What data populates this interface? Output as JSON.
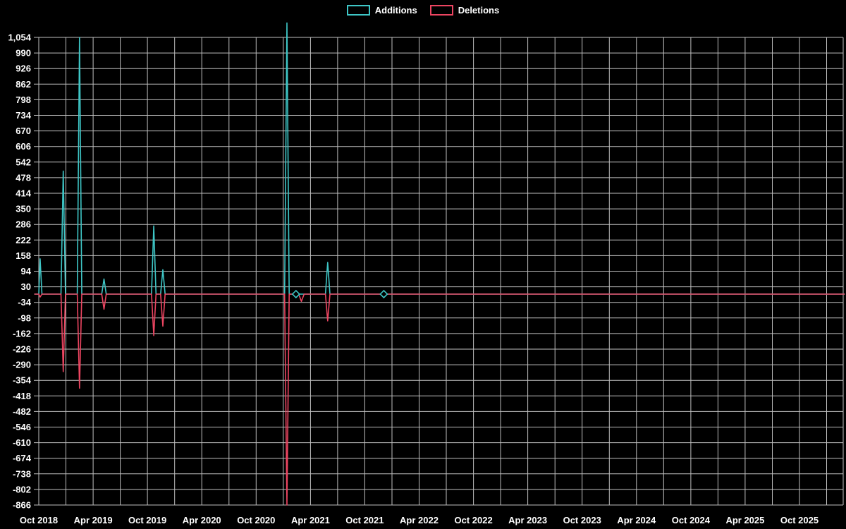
{
  "chart_data": {
    "type": "line",
    "title": "",
    "background": "#000000",
    "grid_color": "#bfbfbf",
    "text_color": "#ffffff",
    "legend": [
      {
        "label": "Additions",
        "color": "#3ec6c6"
      },
      {
        "label": "Deletions",
        "color": "#ec4561"
      }
    ],
    "x_axis": {
      "tick_labels": [
        "Oct 2018",
        "Apr 2019",
        "Oct 2019",
        "Apr 2020",
        "Oct 2020",
        "Apr 2021",
        "Oct 2021",
        "Apr 2022",
        "Oct 2022",
        "Apr 2023",
        "Oct 2023",
        "Apr 2024",
        "Oct 2024",
        "Apr 2025",
        "Oct 2025"
      ],
      "tick_month_index": [
        0,
        6,
        12,
        18,
        24,
        30,
        36,
        42,
        48,
        54,
        60,
        66,
        72,
        78,
        84
      ],
      "gridline_start_month": 0,
      "gridline_every_months": 3,
      "months_range": [
        -0.5,
        89
      ]
    },
    "y_axis": {
      "min": -866,
      "max": 1054,
      "tick_step": 64,
      "tick_labels": [
        "1,054",
        "990",
        "926",
        "862",
        "798",
        "734",
        "670",
        "606",
        "542",
        "478",
        "414",
        "350",
        "286",
        "222",
        "158",
        "94",
        "30",
        "-34",
        "-98",
        "-162",
        "-226",
        "-290",
        "-354",
        "-418",
        "-482",
        "-546",
        "-610",
        "-674",
        "-738",
        "-802",
        "-866"
      ]
    },
    "series": [
      {
        "name": "Additions",
        "color": "#3ec6c6",
        "points": [
          [
            -0.5,
            0
          ],
          [
            0.0,
            0
          ],
          [
            0.15,
            145
          ],
          [
            0.35,
            0
          ],
          [
            2.45,
            0
          ],
          [
            2.7,
            505
          ],
          [
            2.95,
            0
          ],
          [
            4.25,
            0
          ],
          [
            4.5,
            1054
          ],
          [
            4.75,
            0
          ],
          [
            6.95,
            0
          ],
          [
            7.2,
            62
          ],
          [
            7.45,
            0
          ],
          [
            12.45,
            0
          ],
          [
            12.7,
            280
          ],
          [
            12.95,
            0
          ],
          [
            13.45,
            0
          ],
          [
            13.7,
            100
          ],
          [
            13.95,
            0
          ],
          [
            27.15,
            0
          ],
          [
            27.4,
            1113
          ],
          [
            27.65,
            0
          ],
          [
            31.65,
            0
          ],
          [
            31.9,
            130
          ],
          [
            32.15,
            0
          ],
          [
            89,
            0
          ]
        ]
      },
      {
        "name": "Deletions",
        "color": "#ec4561",
        "points": [
          [
            -0.5,
            0
          ],
          [
            0.0,
            0
          ],
          [
            0.15,
            -12
          ],
          [
            0.35,
            0
          ],
          [
            2.45,
            0
          ],
          [
            2.7,
            -318
          ],
          [
            2.95,
            0
          ],
          [
            4.25,
            0
          ],
          [
            4.5,
            -386
          ],
          [
            4.75,
            0
          ],
          [
            6.95,
            0
          ],
          [
            7.2,
            -62
          ],
          [
            7.45,
            0
          ],
          [
            12.45,
            0
          ],
          [
            12.7,
            -170
          ],
          [
            12.95,
            0
          ],
          [
            13.45,
            0
          ],
          [
            13.7,
            -132
          ],
          [
            13.95,
            0
          ],
          [
            27.15,
            0
          ],
          [
            27.4,
            -866
          ],
          [
            27.65,
            0
          ],
          [
            28.7,
            0
          ],
          [
            29.0,
            -30
          ],
          [
            29.3,
            0
          ],
          [
            31.65,
            0
          ],
          [
            31.9,
            -110
          ],
          [
            32.15,
            0
          ],
          [
            89,
            0
          ]
        ]
      }
    ],
    "markers": [
      {
        "series": "Additions",
        "month": 28.4,
        "value": 0
      },
      {
        "series": "Additions",
        "month": 38.1,
        "value": 0
      }
    ]
  }
}
